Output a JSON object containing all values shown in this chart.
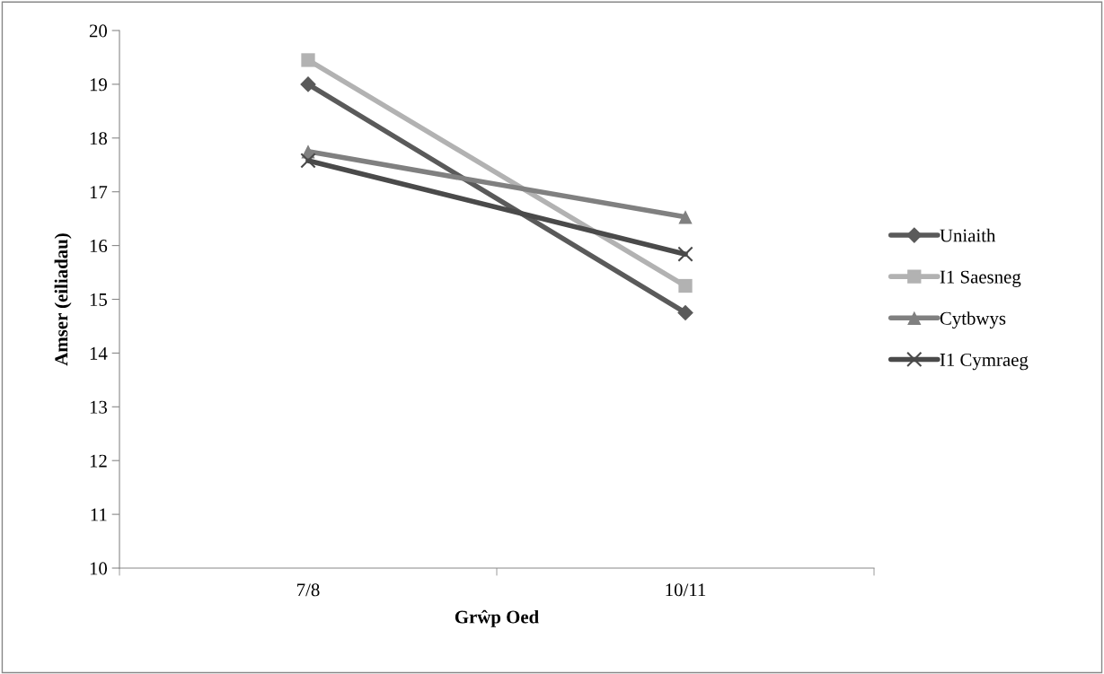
{
  "chart_data": {
    "type": "line",
    "xlabel": "Grŵp Oed",
    "ylabel": "Amser (eiliadau)",
    "categories": [
      "7/8",
      "10/11"
    ],
    "series": [
      {
        "name": "Uniaith",
        "color": "#5a5a5a",
        "marker": "diamond",
        "values": [
          19.0,
          14.75
        ]
      },
      {
        "name": "I1 Saesneg",
        "color": "#b2b2b2",
        "marker": "square",
        "values": [
          19.45,
          15.25
        ]
      },
      {
        "name": "Cytbwys",
        "color": "#808080",
        "marker": "triangle",
        "values": [
          17.75,
          16.53
        ]
      },
      {
        "name": "I1 Cymraeg",
        "color": "#4a4a4a",
        "marker": "cross",
        "values": [
          17.58,
          15.84
        ]
      }
    ],
    "ylim": [
      10,
      20
    ],
    "yticks": [
      10,
      11,
      12,
      13,
      14,
      15,
      16,
      17,
      18,
      19,
      20
    ],
    "grid": false,
    "legend": "right"
  }
}
